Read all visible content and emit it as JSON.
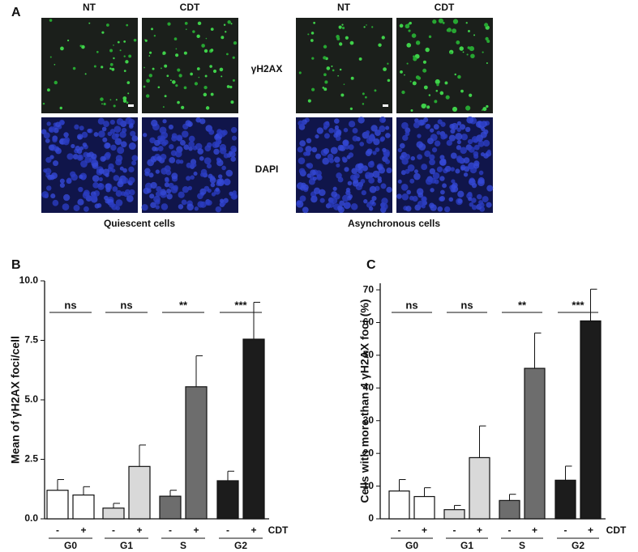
{
  "panel_labels": [
    "A",
    "B",
    "C"
  ],
  "panel_a": {
    "columns": [
      "NT",
      "CDT",
      "NT",
      "CDT"
    ],
    "rows": [
      "γH2AX",
      "DAPI"
    ],
    "groups": [
      "Quiescent cells",
      "Asynchronous cells"
    ]
  },
  "chart_data": [
    {
      "type": "bar",
      "ylabel": "Mean of γH2AX foci/cell",
      "categories": [
        "G0",
        "G1",
        "S",
        "G2"
      ],
      "colors": [
        "#ffffff",
        "#d9d9d9",
        "#6d6d6d",
        "#1c1c1c"
      ],
      "treatment_label": "CDT",
      "series": [
        {
          "name": "-",
          "values": [
            1.2,
            0.45,
            0.95,
            1.6
          ],
          "errors": [
            0.45,
            0.2,
            0.25,
            0.4
          ]
        },
        {
          "name": "+",
          "values": [
            1.0,
            2.2,
            5.55,
            7.55
          ],
          "errors": [
            0.35,
            0.9,
            1.3,
            1.55
          ]
        }
      ],
      "significance": [
        "ns",
        "ns",
        "**",
        "***"
      ],
      "ylim": [
        0,
        10
      ],
      "yticks": [
        {
          "value": 0,
          "label": "0.0"
        },
        {
          "value": 2.5,
          "label": "2.5"
        },
        {
          "value": 5,
          "label": "5.0"
        },
        {
          "value": 7.5,
          "label": "7.5"
        },
        {
          "value": 10,
          "label": "10.0"
        }
      ]
    },
    {
      "type": "bar",
      "ylabel": "Cells with more than 4 γH2AX foci (%)",
      "categories": [
        "G0",
        "G1",
        "S",
        "G2"
      ],
      "colors": [
        "#ffffff",
        "#d9d9d9",
        "#6d6d6d",
        "#1c1c1c"
      ],
      "treatment_label": "CDT",
      "series": [
        {
          "name": "-",
          "values": [
            8.5,
            2.8,
            5.6,
            11.8
          ],
          "errors": [
            3.5,
            1.3,
            1.9,
            4.3
          ]
        },
        {
          "name": "+",
          "values": [
            6.8,
            18.7,
            46,
            60.5
          ],
          "errors": [
            2.7,
            9.7,
            10.8,
            9.7
          ]
        }
      ],
      "significance": [
        "ns",
        "ns",
        "**",
        "***"
      ],
      "ylim": [
        0,
        72
      ],
      "yticks": [
        0,
        10,
        20,
        30,
        40,
        50,
        60,
        70
      ]
    }
  ]
}
